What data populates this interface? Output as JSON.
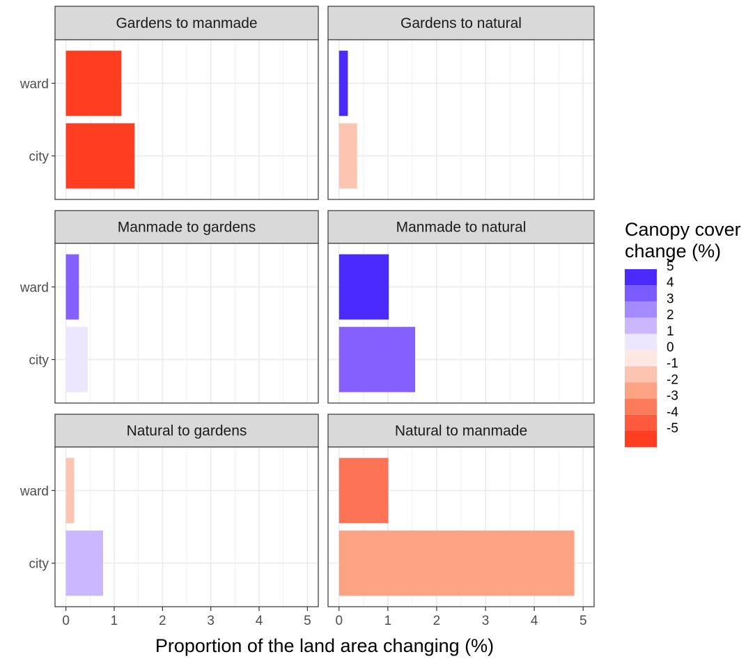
{
  "chart_data": {
    "type": "bar",
    "orientation": "horizontal",
    "xlabel": "Proportion of the land area changing (%)",
    "ylabel": "",
    "xlim": [
      0,
      5
    ],
    "x_ticks": [
      "0",
      "1",
      "2",
      "3",
      "4",
      "5"
    ],
    "categories": [
      "ward",
      "city"
    ],
    "grid": true,
    "legend": {
      "title_lines": [
        "Canopy cover",
        "change (%)"
      ],
      "placement": "right",
      "levels": [
        {
          "label": "5",
          "color": "#4a2aff"
        },
        {
          "label": "4",
          "color": "#7b5cff"
        },
        {
          "label": "3",
          "color": "#a48aff"
        },
        {
          "label": "2",
          "color": "#cbb7ff"
        },
        {
          "label": "1",
          "color": "#ece6ff"
        },
        {
          "label": "0",
          "color": "#fde9e1"
        },
        {
          "label": "-1",
          "color": "#fcc4b1"
        },
        {
          "label": "-2",
          "color": "#fca384"
        },
        {
          "label": "-3",
          "color": "#fd7a5b"
        },
        {
          "label": "-4",
          "color": "#fe5a3d"
        },
        {
          "label": "-5",
          "color": "#ff3d21"
        }
      ]
    },
    "facets": [
      {
        "title": "Gardens to manmade",
        "bars": [
          {
            "category": "ward",
            "value": 1.15,
            "canopy_change": -5,
            "color": "#ff3d21"
          },
          {
            "category": "city",
            "value": 1.42,
            "canopy_change": -5,
            "color": "#ff3d21"
          }
        ]
      },
      {
        "title": "Gardens to natural",
        "bars": [
          {
            "category": "ward",
            "value": 0.18,
            "canopy_change": 5,
            "color": "#4a2aff"
          },
          {
            "category": "city",
            "value": 0.37,
            "canopy_change": -1,
            "color": "#fcc4b1"
          }
        ]
      },
      {
        "title": "Manmade to gardens",
        "bars": [
          {
            "category": "ward",
            "value": 0.27,
            "canopy_change": 4,
            "color": "#8560ff"
          },
          {
            "category": "city",
            "value": 0.45,
            "canopy_change": 1,
            "color": "#ece6ff"
          }
        ]
      },
      {
        "title": "Manmade to natural",
        "bars": [
          {
            "category": "ward",
            "value": 1.02,
            "canopy_change": 5,
            "color": "#4a2aff"
          },
          {
            "category": "city",
            "value": 1.56,
            "canopy_change": 4,
            "color": "#8560ff"
          }
        ]
      },
      {
        "title": "Natural to gardens",
        "bars": [
          {
            "category": "ward",
            "value": 0.17,
            "canopy_change": -1,
            "color": "#fcc4b1"
          },
          {
            "category": "city",
            "value": 0.77,
            "canopy_change": 2,
            "color": "#cbb7ff"
          }
        ]
      },
      {
        "title": "Natural to manmade",
        "bars": [
          {
            "category": "ward",
            "value": 1.01,
            "canopy_change": -3,
            "color": "#fd7356"
          },
          {
            "category": "city",
            "value": 4.82,
            "canopy_change": -2,
            "color": "#fca384"
          }
        ]
      }
    ]
  }
}
